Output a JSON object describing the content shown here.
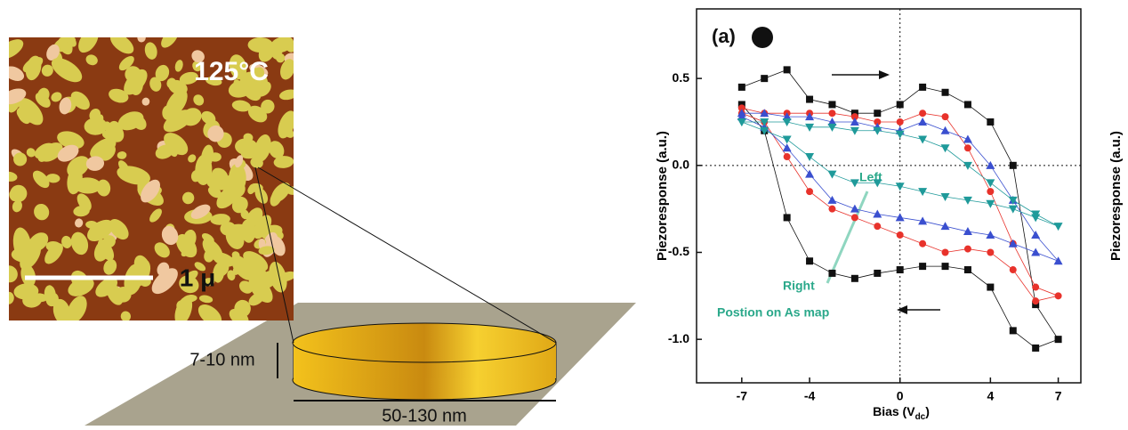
{
  "illustration": {
    "temperature": "125°C",
    "scale_bar": "1 μ",
    "thickness": "7-10 nm",
    "diameter": "50-130 nm"
  },
  "chart_data": {
    "type": "scatter-line",
    "panel_label": "(a)",
    "ylabel": "Piezoresponse (a.u.)",
    "y2label": "Piezoresponse (a.u.)",
    "xlabel": "Bias (V",
    "xlabel_sub": "dc",
    "xlabel_end": ")",
    "annotations": [
      "Left",
      "Right",
      "Postion on As map"
    ],
    "xlim": [
      -9,
      8
    ],
    "ylim": [
      -1.25,
      0.9
    ],
    "xticks": [
      -7,
      -4,
      0,
      4,
      7
    ],
    "yticks": [
      {
        "value": -1.0,
        "label": "-1.0"
      },
      -0.5,
      {
        "value": 0,
        "label": "0.0"
      },
      0.5
    ],
    "x": [
      -7,
      -6,
      -5,
      -4,
      -3,
      -2,
      -1,
      0,
      1,
      2,
      3,
      4,
      5,
      6,
      7,
      6,
      5,
      4,
      3,
      2,
      1,
      0,
      -1,
      -2,
      -3,
      -4,
      -5,
      -6,
      -7
    ],
    "series": [
      {
        "color": "#111111",
        "marker": "square",
        "values": [
          0.45,
          0.5,
          0.55,
          0.38,
          0.35,
          0.3,
          0.3,
          0.35,
          0.45,
          0.42,
          0.35,
          0.25,
          0.0,
          -0.8,
          -1.0,
          -1.05,
          -0.95,
          -0.7,
          -0.6,
          -0.58,
          -0.58,
          -0.6,
          -0.62,
          -0.65,
          -0.62,
          -0.55,
          -0.3,
          0.2,
          0.35
        ]
      },
      {
        "color": "#e8322b",
        "marker": "circle",
        "values": [
          0.33,
          0.3,
          0.3,
          0.3,
          0.3,
          0.28,
          0.25,
          0.25,
          0.3,
          0.28,
          0.1,
          -0.15,
          -0.45,
          -0.7,
          -0.75,
          -0.78,
          -0.6,
          -0.5,
          -0.48,
          -0.5,
          -0.45,
          -0.4,
          -0.35,
          -0.3,
          -0.25,
          -0.15,
          0.05,
          0.25,
          0.3
        ]
      },
      {
        "color": "#3a4fcf",
        "marker": "triangle-up",
        "values": [
          0.3,
          0.3,
          0.28,
          0.28,
          0.25,
          0.25,
          0.22,
          0.2,
          0.25,
          0.2,
          0.15,
          0.0,
          -0.2,
          -0.4,
          -0.55,
          -0.5,
          -0.45,
          -0.4,
          -0.38,
          -0.35,
          -0.32,
          -0.3,
          -0.28,
          -0.25,
          -0.2,
          -0.05,
          0.1,
          0.22,
          0.28
        ]
      },
      {
        "color": "#1f9a9a",
        "marker": "triangle-down",
        "values": [
          0.25,
          0.25,
          0.25,
          0.22,
          0.22,
          0.2,
          0.2,
          0.18,
          0.15,
          0.1,
          0.0,
          -0.1,
          -0.2,
          -0.28,
          -0.35,
          -0.3,
          -0.25,
          -0.22,
          -0.2,
          -0.18,
          -0.15,
          -0.12,
          -0.1,
          -0.1,
          -0.05,
          0.05,
          0.15,
          0.2,
          0.25
        ]
      }
    ]
  }
}
